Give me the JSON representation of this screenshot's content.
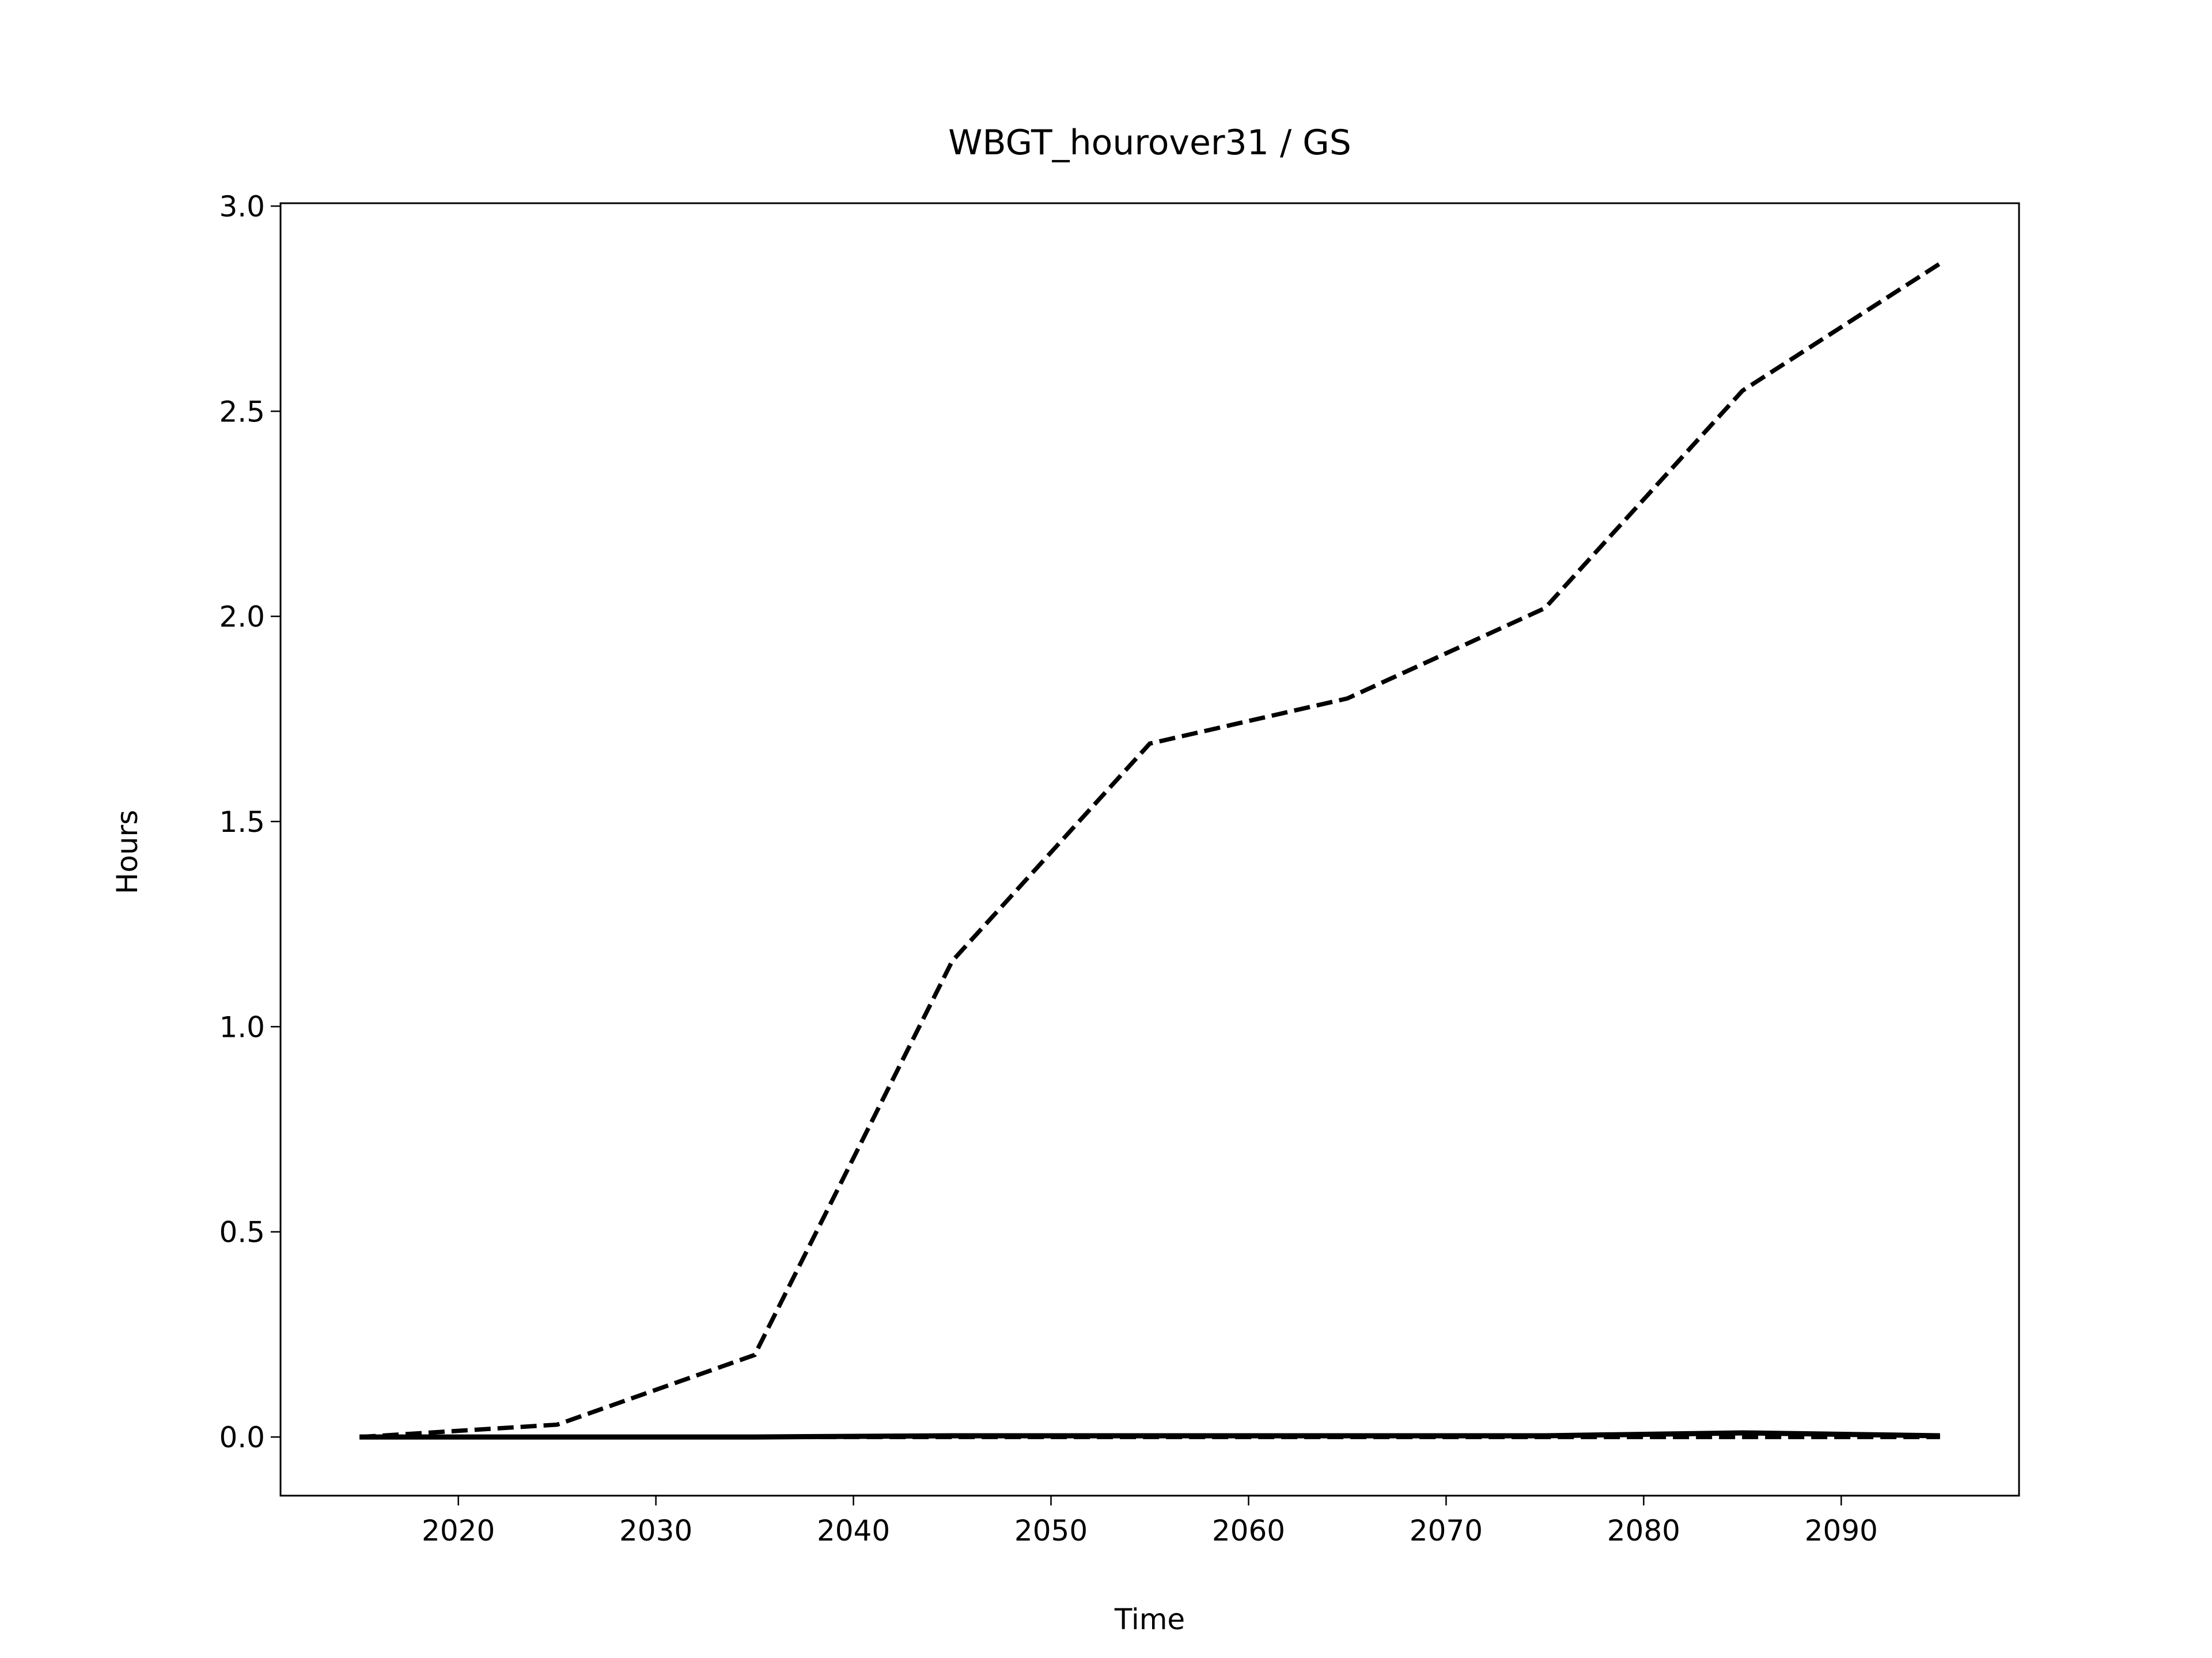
{
  "chart_data": {
    "type": "line",
    "title": "WBGT_hourover31 / GS",
    "xlabel": "Time",
    "ylabel": "Hours",
    "x": [
      2015,
      2025,
      2035,
      2045,
      2055,
      2065,
      2075,
      2085,
      2095
    ],
    "series": [
      {
        "color": "#000000",
        "dash": "dashed",
        "values": [
          0,
          0.03,
          0.2,
          1.16,
          1.69,
          1.8,
          2.02,
          2.55,
          2.86
        ]
      },
      {
        "color": "#000000",
        "dash": "solid",
        "values": [
          0,
          0,
          0,
          0.003,
          0.003,
          0.003,
          0.003,
          0.01,
          0.003
        ]
      },
      {
        "color": "#000000",
        "dash": "dashed",
        "values": [
          0,
          0,
          0,
          0,
          0,
          0,
          0,
          0,
          0
        ]
      }
    ],
    "xlim": [
      2011,
      2099
    ],
    "xticks": [
      2020,
      2030,
      2040,
      2050,
      2060,
      2070,
      2080,
      2090
    ],
    "ylim": [
      -0.143,
      3.007
    ],
    "yticks": [
      {
        "value": 0,
        "label": "0.0"
      },
      {
        "value": 0.5,
        "label": "0.5"
      },
      {
        "value": 1,
        "label": "1.0"
      },
      {
        "value": 1.5,
        "label": "1.5"
      },
      {
        "value": 2,
        "label": "2.0"
      },
      {
        "value": 2.5,
        "label": "2.5"
      },
      {
        "value": 3,
        "label": "3.0"
      }
    ],
    "grid": false
  }
}
